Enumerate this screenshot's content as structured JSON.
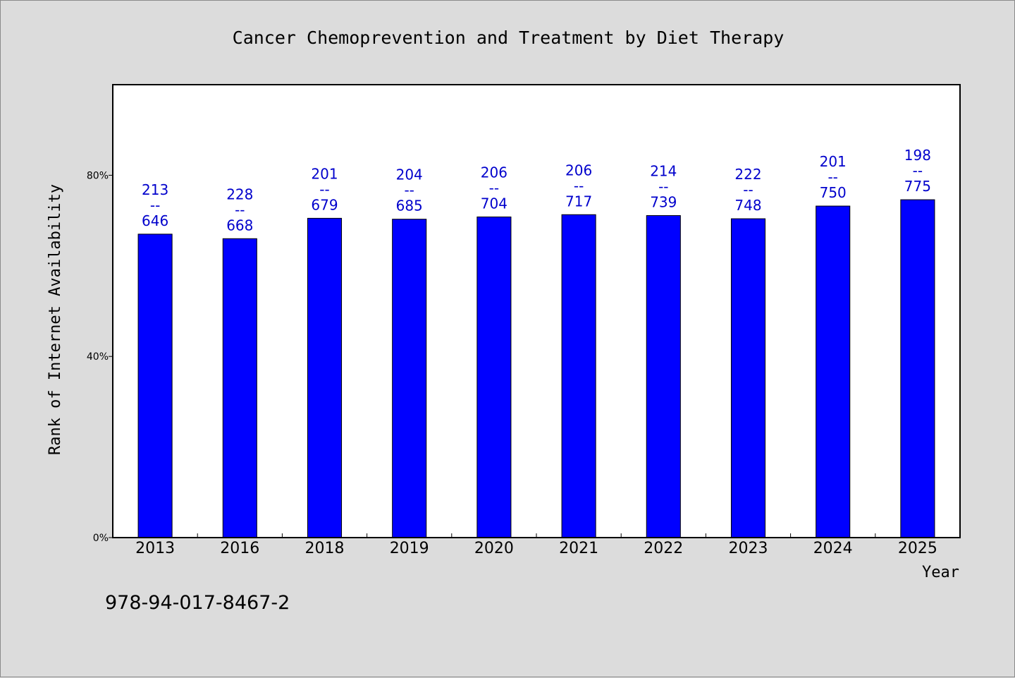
{
  "chart_data": {
    "type": "bar",
    "title": "Cancer Chemoprevention and Treatment by Diet Therapy",
    "xlabel": "Year",
    "ylabel": "Rank of Internet Availability",
    "categories": [
      "2013",
      "2016",
      "2018",
      "2019",
      "2020",
      "2021",
      "2022",
      "2023",
      "2024",
      "2025"
    ],
    "series": [
      {
        "values": [
          67,
          66,
          70.5,
          70.3,
          70.8,
          71.3,
          71.1,
          70.4,
          73.2,
          74.6
        ],
        "color": "#0000ff"
      }
    ],
    "data_labels": [
      [
        "213",
        "--",
        "646"
      ],
      [
        "228",
        "--",
        "668"
      ],
      [
        "201",
        "--",
        "679"
      ],
      [
        "204",
        "--",
        "685"
      ],
      [
        "206",
        "--",
        "704"
      ],
      [
        "206",
        "--",
        "717"
      ],
      [
        "214",
        "--",
        "739"
      ],
      [
        "222",
        "--",
        "748"
      ],
      [
        "201",
        "--",
        "750"
      ],
      [
        "198",
        "--",
        "775"
      ]
    ],
    "ylim": [
      0,
      100
    ],
    "yticks": [
      0,
      40,
      80
    ],
    "ytick_labels": [
      "0%",
      "40%",
      "80%"
    ],
    "grid": false,
    "legend": "none"
  },
  "footer": {
    "isbn": "978-94-017-8467-2"
  },
  "colors": {
    "background": "#dcdcdc",
    "plot_background": "#ffffff",
    "bar": "#0000ff",
    "data_label": "#0000cc"
  }
}
